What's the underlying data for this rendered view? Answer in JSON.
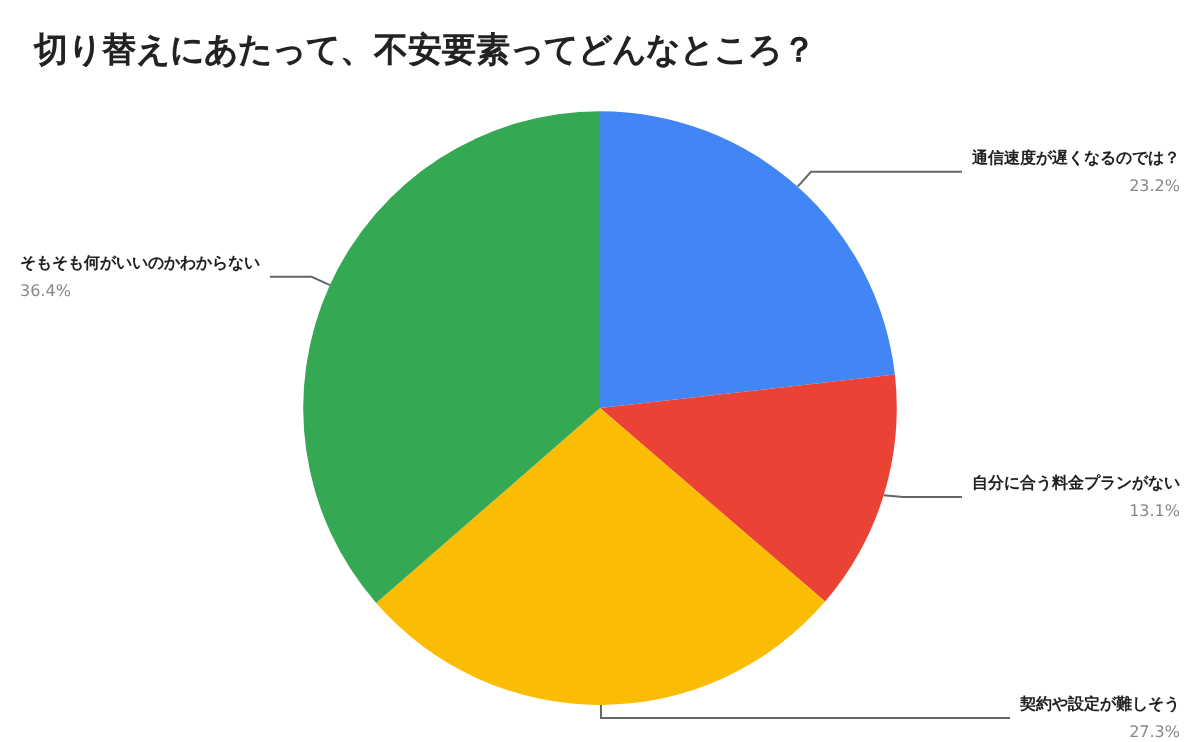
{
  "chart_data": {
    "type": "pie",
    "title": "切り替えにあたって、不安要素ってどんなところ？",
    "categories": [
      "通信速度が遅くなるのでは？",
      "自分に合う料金プランがない",
      "契約や設定が難しそう",
      "そもそも何がいいのかわからない"
    ],
    "values": [
      23.2,
      13.1,
      27.3,
      36.4
    ],
    "value_labels": [
      "23.2%",
      "13.1%",
      "27.3%",
      "36.4%"
    ],
    "colors": [
      "#4285f4",
      "#ea4335",
      "#fbbc04",
      "#34a853"
    ],
    "legend": false
  }
}
